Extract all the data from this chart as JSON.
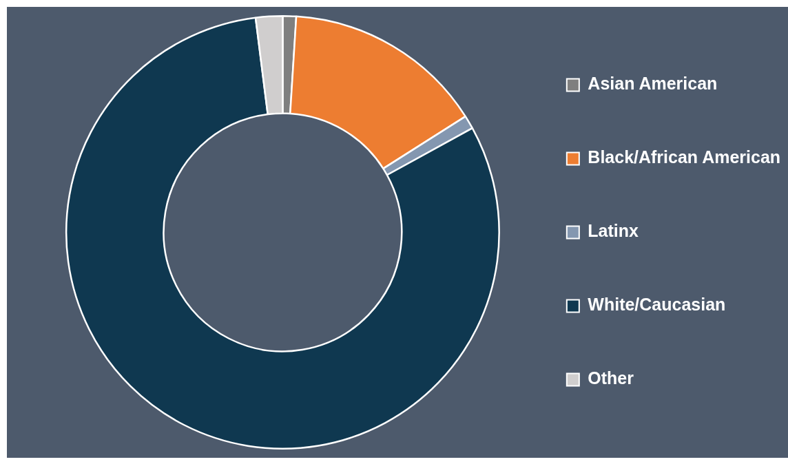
{
  "chart_data": {
    "type": "donut",
    "categories": [
      "Asian American",
      "Black/African American",
      "Latinx",
      "White/Caucasian",
      "Other"
    ],
    "values": [
      1,
      15,
      1,
      81,
      2
    ],
    "colors": [
      "#7f7f7f",
      "#ed7d31",
      "#8497b0",
      "#0f3850",
      "#d0cece"
    ],
    "legend": "right"
  }
}
